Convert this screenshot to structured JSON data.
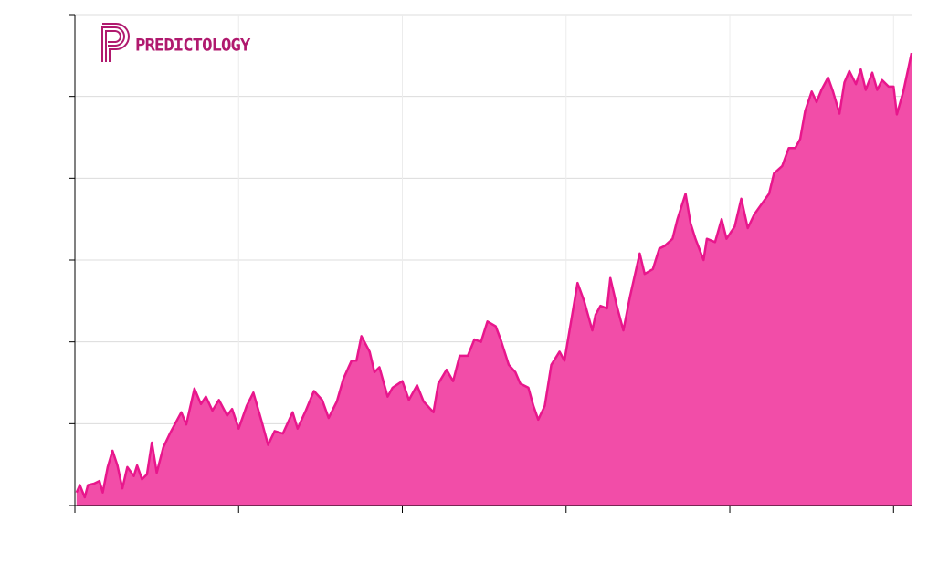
{
  "chart_data": {
    "type": "area",
    "annotation": "PREDICTOLOGY",
    "x": [
      0.01,
      0.03,
      0.06,
      0.08,
      0.12,
      0.15,
      0.17,
      0.2,
      0.23,
      0.26,
      0.29,
      0.32,
      0.36,
      0.38,
      0.41,
      0.44,
      0.47,
      0.5,
      0.54,
      0.58,
      0.61,
      0.65,
      0.68,
      0.73,
      0.77,
      0.8,
      0.84,
      0.88,
      0.93,
      0.96,
      1.0,
      1.05,
      1.09,
      1.14,
      1.18,
      1.22,
      1.27,
      1.33,
      1.36,
      1.41,
      1.46,
      1.51,
      1.55,
      1.6,
      1.64,
      1.69,
      1.72,
      1.75,
      1.8,
      1.83,
      1.86,
      1.91,
      1.94,
      2.0,
      2.04,
      2.09,
      2.13,
      2.19,
      2.22,
      2.27,
      2.31,
      2.35,
      2.4,
      2.44,
      2.48,
      2.52,
      2.57,
      2.6,
      2.65,
      2.69,
      2.72,
      2.77,
      2.8,
      2.83,
      2.87,
      2.91,
      2.96,
      2.99,
      3.04,
      3.07,
      3.11,
      3.16,
      3.18,
      3.21,
      3.25,
      3.27,
      3.31,
      3.35,
      3.39,
      3.45,
      3.48,
      3.53,
      3.57,
      3.6,
      3.65,
      3.68,
      3.73,
      3.76,
      3.79,
      3.84,
      3.86,
      3.91,
      3.95,
      3.98,
      4.03,
      4.07,
      4.11,
      4.15,
      4.2,
      4.24,
      4.27,
      4.32,
      4.36,
      4.4,
      4.43,
      4.46,
      4.5,
      4.53,
      4.56,
      4.6,
      4.63,
      4.67,
      4.7,
      4.73,
      4.77,
      4.8,
      4.83,
      4.87,
      4.9,
      4.93,
      4.97,
      5.0,
      5.02,
      5.06,
      5.09,
      5.11
    ],
    "series": [
      {
        "color": "#e8168c",
        "fill": "#f24da8",
        "values": [
          0.16,
          0.25,
          0.1,
          0.25,
          0.27,
          0.3,
          0.16,
          0.47,
          0.67,
          0.49,
          0.21,
          0.47,
          0.36,
          0.49,
          0.32,
          0.38,
          0.77,
          0.4,
          0.71,
          0.88,
          0.99,
          1.14,
          0.99,
          1.43,
          1.24,
          1.33,
          1.16,
          1.29,
          1.1,
          1.18,
          0.94,
          1.22,
          1.38,
          1.03,
          0.74,
          0.91,
          0.88,
          1.14,
          0.94,
          1.16,
          1.4,
          1.29,
          1.07,
          1.27,
          1.55,
          1.77,
          1.77,
          2.07,
          1.88,
          1.63,
          1.69,
          1.33,
          1.44,
          1.52,
          1.29,
          1.47,
          1.27,
          1.14,
          1.49,
          1.66,
          1.52,
          1.83,
          1.83,
          2.03,
          2.0,
          2.25,
          2.19,
          2.03,
          1.72,
          1.63,
          1.49,
          1.44,
          1.22,
          1.05,
          1.22,
          1.72,
          1.88,
          1.77,
          2.36,
          2.72,
          2.5,
          2.14,
          2.33,
          2.44,
          2.41,
          2.78,
          2.44,
          2.14,
          2.55,
          3.08,
          2.83,
          2.89,
          3.14,
          3.17,
          3.26,
          3.5,
          3.81,
          3.45,
          3.26,
          3.0,
          3.26,
          3.22,
          3.5,
          3.26,
          3.41,
          3.75,
          3.39,
          3.56,
          3.7,
          3.81,
          4.06,
          4.15,
          4.37,
          4.37,
          4.48,
          4.82,
          5.06,
          4.93,
          5.08,
          5.23,
          5.06,
          4.79,
          5.17,
          5.31,
          5.15,
          5.33,
          5.08,
          5.29,
          5.08,
          5.2,
          5.12,
          5.12,
          4.78,
          5.06,
          5.34,
          5.53
        ]
      }
    ],
    "xlim": [
      0,
      5.11
    ],
    "xticks": [
      0,
      1,
      2,
      3,
      4,
      5
    ],
    "ylim": [
      0,
      6
    ],
    "yticks": [
      0,
      1,
      2,
      3,
      4,
      5,
      6
    ],
    "grid": true
  }
}
